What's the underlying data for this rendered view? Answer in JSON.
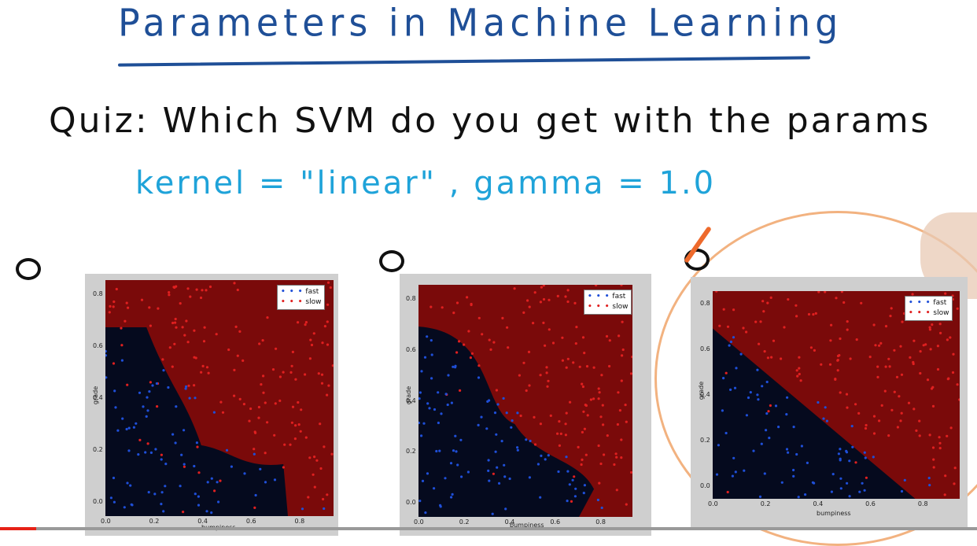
{
  "title": "Parameters in Machine Learning",
  "quiz": "Quiz: Which SVM do you get with the params",
  "params": "kernel = \"linear\" , gamma = 1.0",
  "options": [
    {
      "xlabel": "bumpiness",
      "ylabel": "grade",
      "legend": {
        "fast": "fast",
        "slow": "slow"
      }
    },
    {
      "xlabel": "bumpiness",
      "ylabel": "grade",
      "legend": {
        "fast": "fast",
        "slow": "slow"
      }
    },
    {
      "xlabel": "bumpiness",
      "ylabel": "grade",
      "legend": {
        "fast": "fast",
        "slow": "slow"
      }
    }
  ],
  "yticks": [
    "0.8",
    "0.6",
    "0.4",
    "0.2",
    "0.0"
  ],
  "xticks": [
    "0.0",
    "0.2",
    "0.4",
    "0.6",
    "0.8"
  ],
  "colors": {
    "title": "#1f4f97",
    "params": "#1fa3d9",
    "fast_region": "#050a1e",
    "slow_region": "#7a0a0a",
    "fast": "#1f4fd8",
    "slow": "#e02020",
    "check": "#ee6a2c"
  },
  "video": {
    "progress": 0.037
  },
  "chart_data": [
    {
      "type": "scatter",
      "xlabel": "bumpiness",
      "ylabel": "grade",
      "xlim": [
        0,
        0.95
      ],
      "ylim": [
        0,
        0.9
      ],
      "legend": "top-right",
      "series": [
        {
          "name": "fast",
          "values": []
        },
        {
          "name": "slow",
          "values": []
        }
      ]
    },
    {
      "type": "scatter",
      "xlabel": "bumpiness",
      "ylabel": "grade",
      "xlim": [
        0,
        0.95
      ],
      "ylim": [
        0,
        0.9
      ],
      "legend": "top-right",
      "series": [
        {
          "name": "fast",
          "values": []
        },
        {
          "name": "slow",
          "values": []
        }
      ]
    },
    {
      "type": "scatter",
      "xlabel": "bumpiness",
      "ylabel": "grade",
      "xlim": [
        0,
        0.95
      ],
      "ylim": [
        0,
        0.9
      ],
      "legend": "top-right",
      "series": [
        {
          "name": "fast",
          "values": []
        },
        {
          "name": "slow",
          "values": []
        }
      ]
    }
  ]
}
